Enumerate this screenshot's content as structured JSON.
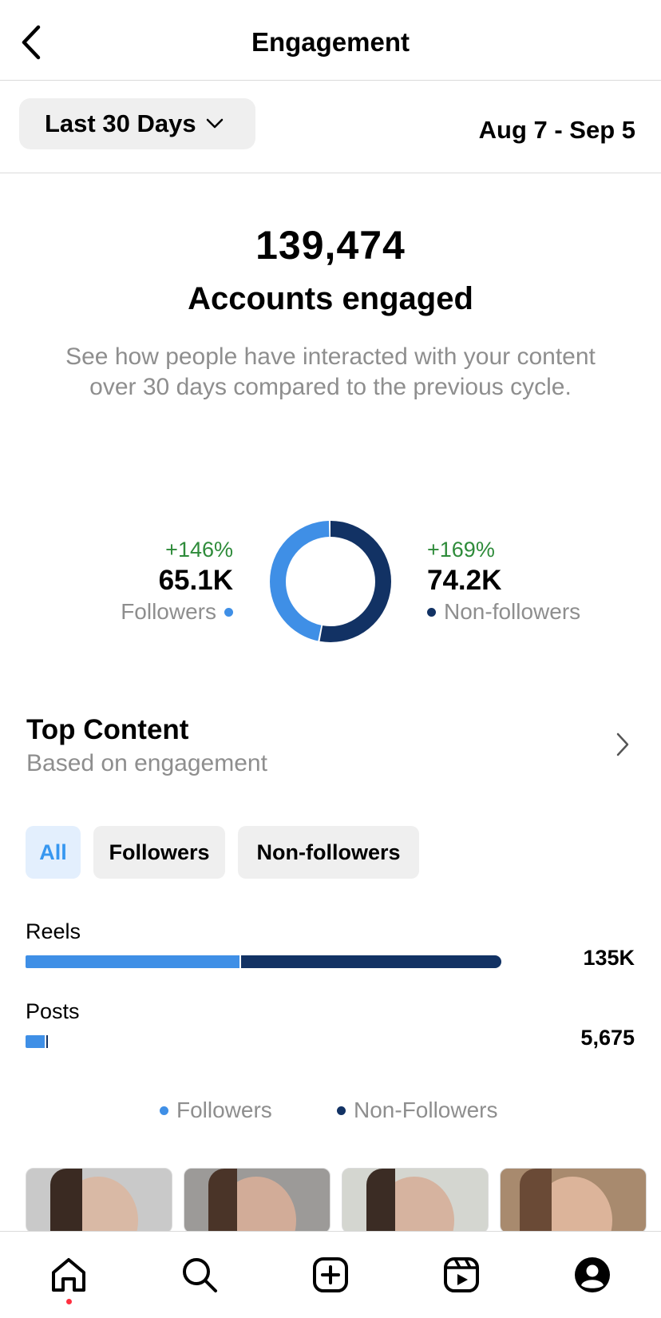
{
  "header": {
    "title": "Engagement"
  },
  "filter": {
    "range_label": "Last 30 Days",
    "date_range": "Aug 7 - Sep 5"
  },
  "summary": {
    "total": "139,474",
    "label": "Accounts engaged",
    "description": "See how people have interacted with your content over 30 days compared to the previous cycle."
  },
  "donut": {
    "followers": {
      "change": "+146%",
      "value": "65.1K",
      "label": "Followers",
      "share": 0.467
    },
    "non_followers": {
      "change": "+169%",
      "value": "74.2K",
      "label": "Non-followers",
      "share": 0.533
    }
  },
  "top_content": {
    "title": "Top Content",
    "subtitle": "Based on engagement",
    "chips": [
      "All",
      "Followers",
      "Non-followers"
    ],
    "active_chip": "All",
    "bars": [
      {
        "label": "Reels",
        "value": "135K",
        "total_fraction": 1.0,
        "followers_fraction": 0.45
      },
      {
        "label": "Posts",
        "value": "5,675",
        "total_fraction": 0.045,
        "followers_fraction": 0.9
      }
    ],
    "legend": [
      "Followers",
      "Non-Followers"
    ]
  },
  "colors": {
    "followers": "#3f8fe6",
    "non_followers": "#123264",
    "positive": "#2e8b3a",
    "muted": "#8e8e8e",
    "notification": "#ff3040"
  },
  "icons": {
    "back": "chevron-left-icon",
    "dropdown": "chevron-down-icon",
    "more": "chevron-right-icon",
    "nav": [
      "home-icon",
      "search-icon",
      "create-icon",
      "reels-icon",
      "profile-icon"
    ]
  }
}
